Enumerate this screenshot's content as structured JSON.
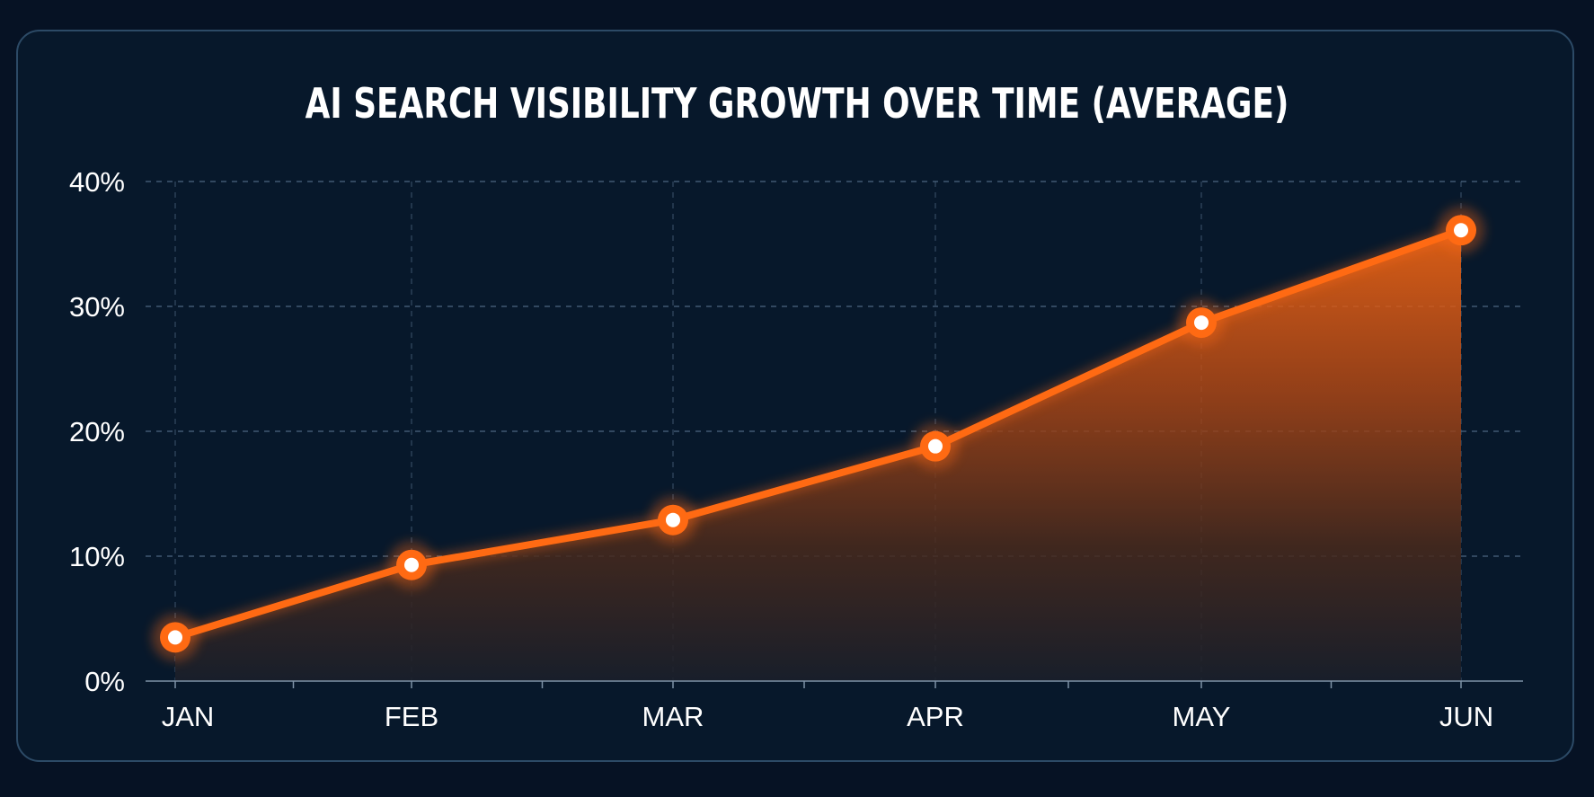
{
  "chart_data": {
    "type": "area",
    "title": "AI SEARCH VISIBILITY GROWTH OVER TIME (AVERAGE)",
    "xlabel": "",
    "ylabel": "",
    "categories": [
      "JAN",
      "FEB",
      "MAR",
      "APR",
      "MAY",
      "JUN"
    ],
    "values": [
      3.5,
      9.3,
      12.9,
      18.8,
      28.7,
      36.1
    ],
    "ylim": [
      0,
      40
    ],
    "yticks": [
      0,
      10,
      20,
      30,
      40
    ],
    "ytick_labels": [
      "0%",
      "10%",
      "20%",
      "30%",
      "40%"
    ],
    "grid": true,
    "legend": "none",
    "colors": {
      "line": "#ff6a13",
      "marker_fill": "#ffffff",
      "grid": "#4d6680",
      "area_top": "#ff6a13",
      "area_bottom": "#1a1f2a",
      "background": "#07182b"
    }
  }
}
